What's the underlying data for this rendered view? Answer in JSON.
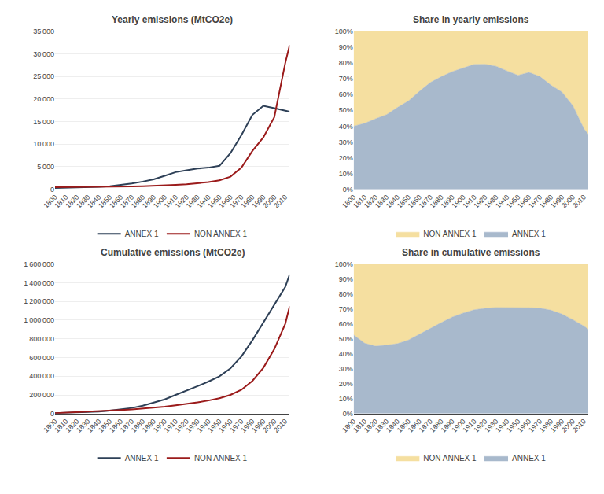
{
  "chart_data": [
    {
      "type": "line",
      "title": "Yearly emissions (MtCO2e)",
      "x": [
        1800,
        1810,
        1820,
        1830,
        1840,
        1850,
        1860,
        1870,
        1880,
        1890,
        1900,
        1910,
        1920,
        1930,
        1940,
        1950,
        1960,
        1970,
        1980,
        1990,
        2000,
        2010,
        2014
      ],
      "series": [
        {
          "name": "ANNEX 1",
          "color": "#2E4057",
          "values": [
            300,
            330,
            380,
            440,
            550,
            700,
            950,
            1300,
            1700,
            2200,
            3000,
            3800,
            4200,
            4600,
            4800,
            5200,
            8000,
            12000,
            16500,
            18500,
            18000,
            17500,
            17200
          ]
        },
        {
          "name": "NON ANNEX 1",
          "color": "#9B1B1B",
          "values": [
            450,
            460,
            470,
            490,
            510,
            550,
            580,
            620,
            680,
            750,
            900,
            1000,
            1100,
            1300,
            1600,
            2000,
            2800,
            4800,
            8500,
            11500,
            16000,
            28000,
            32000
          ]
        }
      ],
      "xlim": [
        1800,
        2014
      ],
      "xticks": [
        1800,
        1810,
        1820,
        1830,
        1840,
        1850,
        1860,
        1870,
        1880,
        1890,
        1900,
        1910,
        1920,
        1930,
        1940,
        1950,
        1960,
        1970,
        1980,
        1990,
        2000,
        2010
      ],
      "ylim": [
        0,
        35000
      ],
      "yticks": [
        0,
        {
          "value": 5000,
          "label": "5 000"
        },
        {
          "value": 10000,
          "label": "10 000"
        },
        {
          "value": 15000,
          "label": "15 000"
        },
        {
          "value": 20000,
          "label": "20 000"
        },
        {
          "value": 25000,
          "label": "25 000"
        },
        {
          "value": 30000,
          "label": "30 000"
        },
        {
          "value": 35000,
          "label": "35 000"
        }
      ],
      "grid": true,
      "legend": "bottom"
    },
    {
      "type": "area",
      "stacked": true,
      "title": "Share in yearly emissions",
      "x": [
        1800,
        1810,
        1820,
        1830,
        1840,
        1850,
        1860,
        1870,
        1880,
        1890,
        1900,
        1910,
        1920,
        1930,
        1940,
        1950,
        1960,
        1970,
        1980,
        1990,
        2000,
        2010,
        2014
      ],
      "series": [
        {
          "name": "ANNEX 1",
          "color": "#A8B9CC",
          "values": [
            0.4,
            0.417722,
            0.447059,
            0.473118,
            0.518868,
            0.56,
            0.620915,
            0.677083,
            0.714286,
            0.745763,
            0.769231,
            0.791667,
            0.792453,
            0.779661,
            0.75,
            0.722222,
            0.740741,
            0.714286,
            0.66,
            0.616667,
            0.529412,
            0.384615,
            0.349593
          ]
        },
        {
          "name": "NON ANNEX 1",
          "color": "#F5DFA0",
          "values": [
            0.6,
            0.582278,
            0.552941,
            0.526882,
            0.481132,
            0.44,
            0.379085,
            0.322917,
            0.285714,
            0.254237,
            0.230769,
            0.208333,
            0.207547,
            0.220339,
            0.25,
            0.277778,
            0.259259,
            0.285714,
            0.34,
            0.383333,
            0.470588,
            0.615385,
            0.650407
          ]
        }
      ],
      "xlim": [
        1800,
        2014
      ],
      "xticks": [
        1800,
        1810,
        1820,
        1830,
        1840,
        1850,
        1860,
        1870,
        1880,
        1890,
        1900,
        1910,
        1920,
        1930,
        1940,
        1950,
        1960,
        1970,
        1980,
        1990,
        2000,
        2010
      ],
      "ylim": [
        0,
        1.0
      ],
      "yticks": [
        {
          "value": 0,
          "label": "0%"
        },
        {
          "value": 0.1,
          "label": "10%"
        },
        {
          "value": 0.2,
          "label": "20%"
        },
        {
          "value": 0.3,
          "label": "30%"
        },
        {
          "value": 0.4,
          "label": "40%"
        },
        {
          "value": 0.5,
          "label": "50%"
        },
        {
          "value": 0.6,
          "label": "60%"
        },
        {
          "value": 0.7,
          "label": "70%"
        },
        {
          "value": 0.8,
          "label": "80%"
        },
        {
          "value": 0.9,
          "label": "90%"
        },
        {
          "value": 1.0,
          "label": "100%"
        }
      ],
      "grid": true,
      "legend": "bottom"
    },
    {
      "type": "line",
      "title": "Cumulative emissions (MtCO2e)",
      "x": [
        1800,
        1810,
        1820,
        1830,
        1840,
        1850,
        1860,
        1870,
        1880,
        1890,
        1900,
        1910,
        1920,
        1930,
        1940,
        1950,
        1960,
        1970,
        1980,
        1990,
        2000,
        2010,
        2014
      ],
      "series": [
        {
          "name": "ANNEX 1",
          "color": "#2E4057",
          "values": [
            5000,
            8000,
            11500,
            16000,
            22000,
            31000,
            43000,
            60000,
            84000,
            115000,
            152000,
            200000,
            245000,
            293000,
            343000,
            399000,
            484000,
            611000,
            784000,
            976000,
            1165000,
            1355000,
            1490000
          ]
        },
        {
          "name": "NON ANNEX 1",
          "color": "#9B1B1B",
          "values": [
            4500,
            9000,
            14000,
            19000,
            25000,
            32000,
            38000,
            45000,
            54000,
            63000,
            74000,
            88000,
            103000,
            120000,
            140000,
            165000,
            200000,
            255000,
            350000,
            490000,
            690000,
            960000,
            1150000
          ]
        }
      ],
      "xlim": [
        1800,
        2014
      ],
      "xticks": [
        1800,
        1810,
        1820,
        1830,
        1840,
        1850,
        1860,
        1870,
        1880,
        1890,
        1900,
        1910,
        1920,
        1930,
        1940,
        1950,
        1960,
        1970,
        1980,
        1990,
        2000,
        2010
      ],
      "ylim": [
        0,
        1600000
      ],
      "yticks": [
        0,
        {
          "value": 200000,
          "label": "200 000"
        },
        {
          "value": 400000,
          "label": "400 000"
        },
        {
          "value": 600000,
          "label": "600 000"
        },
        {
          "value": 800000,
          "label": "800 000"
        },
        {
          "value": 1000000,
          "label": "1 000 000"
        },
        {
          "value": 1200000,
          "label": "1 200 000"
        },
        {
          "value": 1400000,
          "label": "1 400 000"
        },
        {
          "value": 1600000,
          "label": "1 600 000"
        }
      ],
      "grid": true,
      "legend": "bottom"
    },
    {
      "type": "area",
      "stacked": true,
      "title": "Share in cumulative emissions",
      "x": [
        1800,
        1810,
        1820,
        1830,
        1840,
        1850,
        1860,
        1870,
        1880,
        1890,
        1900,
        1910,
        1920,
        1930,
        1940,
        1950,
        1960,
        1970,
        1980,
        1990,
        2000,
        2010,
        2014
      ],
      "series": [
        {
          "name": "ANNEX 1",
          "color": "#A8B9CC",
          "values": [
            0.526316,
            0.470588,
            0.45098,
            0.457143,
            0.468085,
            0.492063,
            0.530864,
            0.571429,
            0.608696,
            0.646067,
            0.672566,
            0.694444,
            0.704023,
            0.709443,
            0.710145,
            0.707447,
            0.707602,
            0.705543,
            0.691358,
            0.665757,
            0.628032,
            0.585313,
            0.564394
          ]
        },
        {
          "name": "NON ANNEX 1",
          "color": "#F5DFA0",
          "values": [
            0.473684,
            0.529412,
            0.54902,
            0.542857,
            0.531915,
            0.507937,
            0.469136,
            0.428571,
            0.391304,
            0.353933,
            0.327434,
            0.305556,
            0.295977,
            0.290557,
            0.289855,
            0.292553,
            0.292398,
            0.294457,
            0.308642,
            0.334243,
            0.371968,
            0.414687,
            0.435606
          ]
        }
      ],
      "xlim": [
        1800,
        2014
      ],
      "xticks": [
        1800,
        1810,
        1820,
        1830,
        1840,
        1850,
        1860,
        1870,
        1880,
        1890,
        1900,
        1910,
        1920,
        1930,
        1940,
        1950,
        1960,
        1970,
        1980,
        1990,
        2000,
        2010
      ],
      "ylim": [
        0,
        1.0
      ],
      "yticks": [
        {
          "value": 0,
          "label": "0%"
        },
        {
          "value": 0.1,
          "label": "10%"
        },
        {
          "value": 0.2,
          "label": "20%"
        },
        {
          "value": 0.3,
          "label": "30%"
        },
        {
          "value": 0.4,
          "label": "40%"
        },
        {
          "value": 0.5,
          "label": "50%"
        },
        {
          "value": 0.6,
          "label": "60%"
        },
        {
          "value": 0.7,
          "label": "70%"
        },
        {
          "value": 0.8,
          "label": "80%"
        },
        {
          "value": 0.9,
          "label": "90%"
        },
        {
          "value": 1.0,
          "label": "100%"
        }
      ],
      "grid": true,
      "legend": "bottom"
    }
  ]
}
